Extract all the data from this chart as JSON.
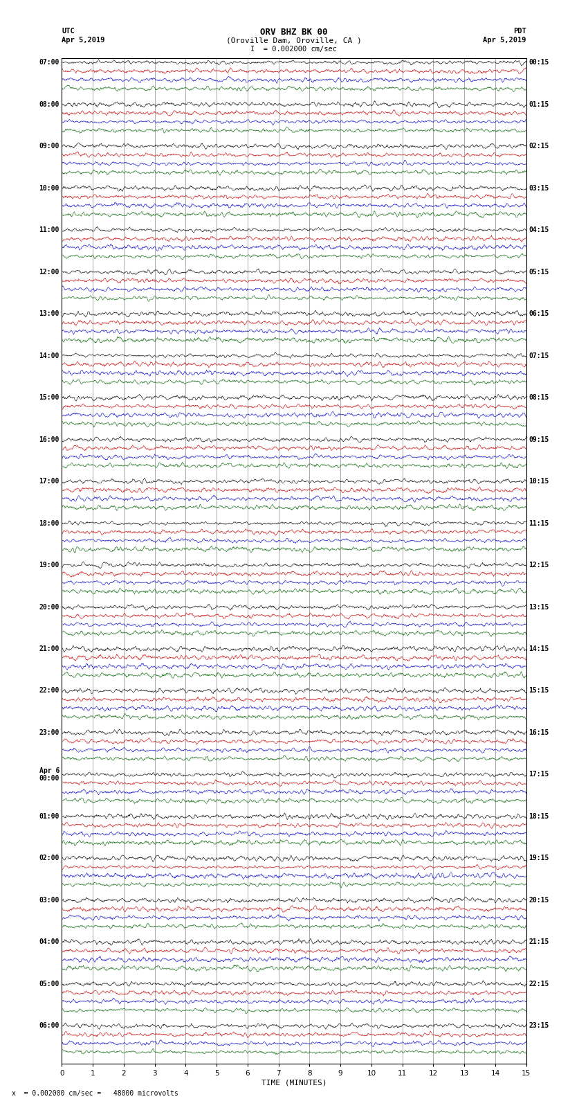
{
  "title_line1": "ORV BHZ BK 00",
  "title_line2": "(Oroville Dam, Oroville, CA )",
  "scale_label": "I  = 0.002000 cm/sec",
  "left_label_top": "UTC",
  "left_label_date": "Apr 5,2019",
  "right_label_top": "PDT",
  "right_label_date": "Apr 5,2019",
  "xlabel": "TIME (MINUTES)",
  "bottom_note": "x  = 0.002000 cm/sec =   48000 microvolts",
  "xmin": 0,
  "xmax": 15,
  "background_color": "#ffffff",
  "trace_colors": [
    "#000000",
    "#cc0000",
    "#0000cc",
    "#006600"
  ],
  "grid_color": "#888888",
  "left_times_utc": [
    "07:00",
    "08:00",
    "09:00",
    "10:00",
    "11:00",
    "12:00",
    "13:00",
    "14:00",
    "15:00",
    "16:00",
    "17:00",
    "18:00",
    "19:00",
    "20:00",
    "21:00",
    "22:00",
    "23:00",
    "Apr 6\n00:00",
    "01:00",
    "02:00",
    "03:00",
    "04:00",
    "05:00",
    "06:00"
  ],
  "right_times_pdt": [
    "00:15",
    "01:15",
    "02:15",
    "03:15",
    "04:15",
    "05:15",
    "06:15",
    "07:15",
    "08:15",
    "09:15",
    "10:15",
    "11:15",
    "12:15",
    "13:15",
    "14:15",
    "15:15",
    "16:15",
    "17:15",
    "18:15",
    "19:15",
    "20:15",
    "21:15",
    "22:15",
    "23:15"
  ],
  "n_hours": 24,
  "traces_per_hour": 4,
  "noise_amplitude": 0.06,
  "noise_smoothing": 8,
  "high_activity_hours": [
    9,
    10,
    11,
    12
  ],
  "high_amplitude": 0.18
}
